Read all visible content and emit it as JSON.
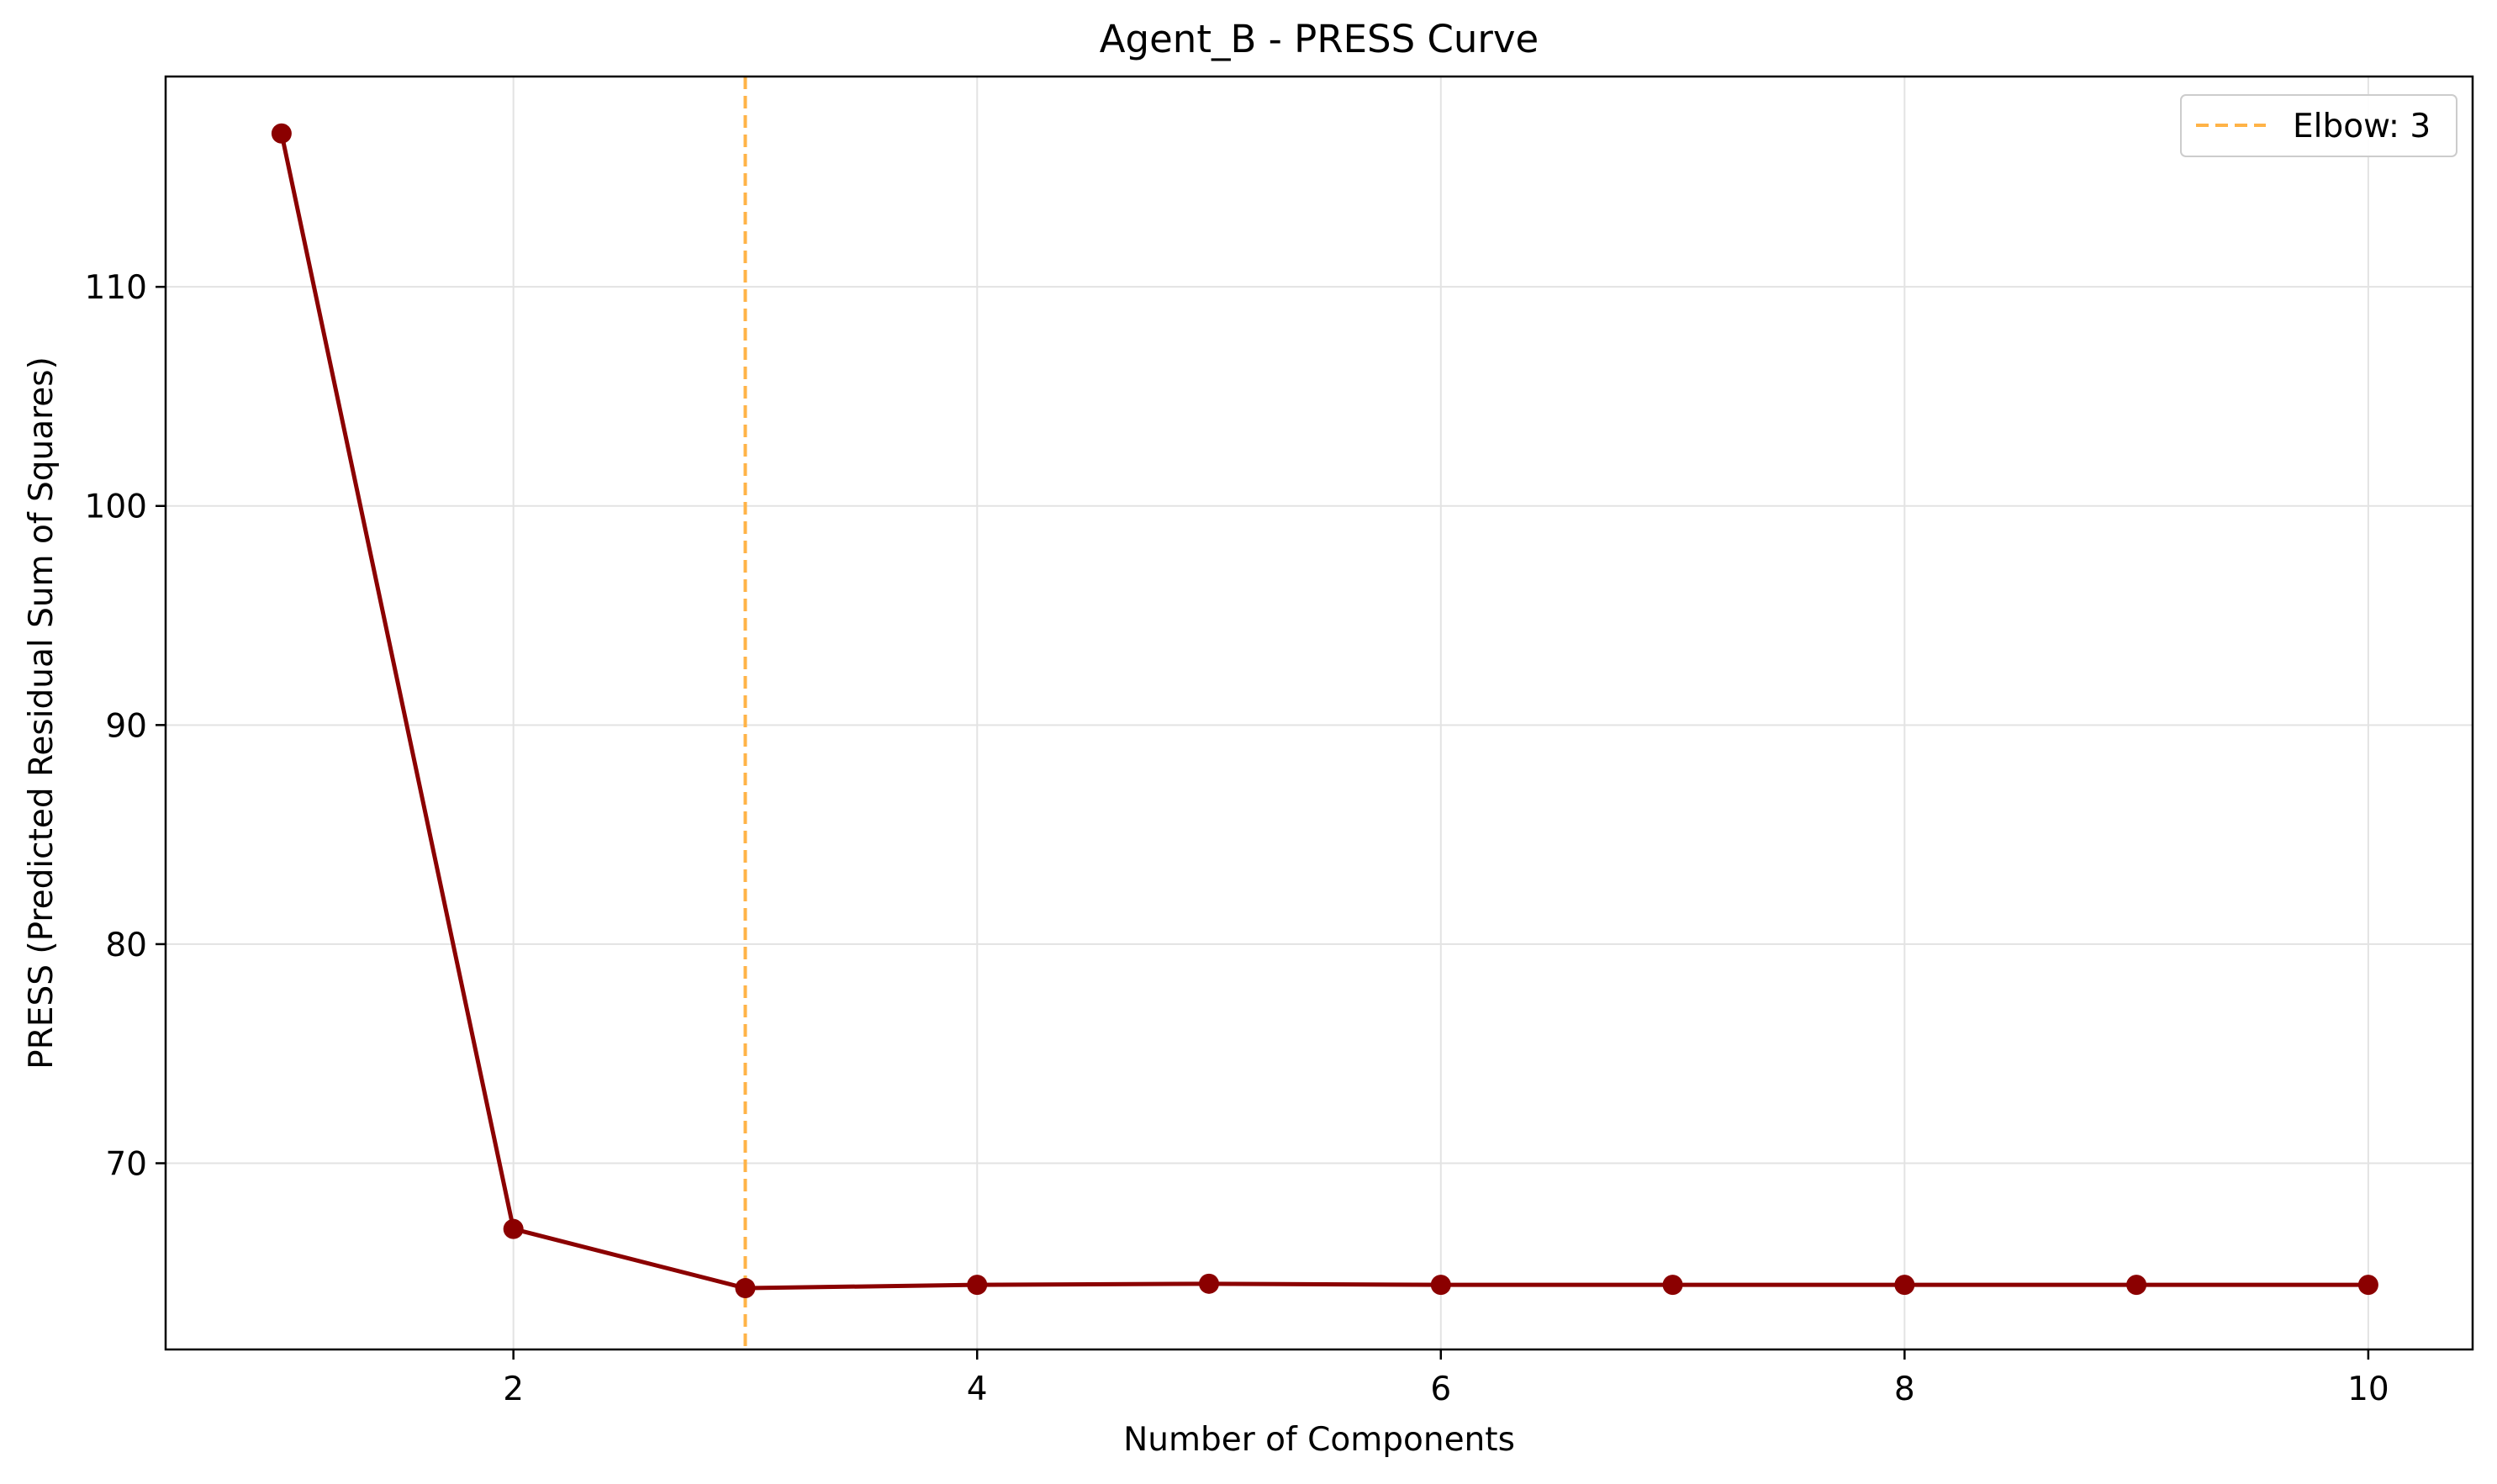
{
  "chart_data": {
    "type": "line",
    "title": "Agent_B - PRESS Curve",
    "xlabel": "Number of Components",
    "ylabel": "PRESS (Predicted Residual Sum of Squares)",
    "xlim": [
      0.5,
      10.45
    ],
    "ylim": [
      61.5,
      119.6
    ],
    "xticks": [
      2,
      4,
      6,
      8,
      10
    ],
    "yticks": [
      70,
      80,
      90,
      100,
      110
    ],
    "grid": true,
    "series": [
      {
        "x": [
          1,
          2,
          3,
          4,
          5,
          6,
          7,
          8,
          9,
          10
        ],
        "y": [
          117.0,
          67.0,
          64.3,
          64.45,
          64.5,
          64.45,
          64.45,
          64.45,
          64.45,
          64.45
        ],
        "color": "#8b0000",
        "marker": "circle"
      }
    ],
    "reference_lines": [
      {
        "orientation": "vertical",
        "x": 3,
        "label": "Elbow: 3",
        "color": "#ffb347",
        "style": "dashed"
      }
    ],
    "legend": {
      "position": "top-right",
      "entries": [
        "Elbow: 3"
      ]
    }
  }
}
